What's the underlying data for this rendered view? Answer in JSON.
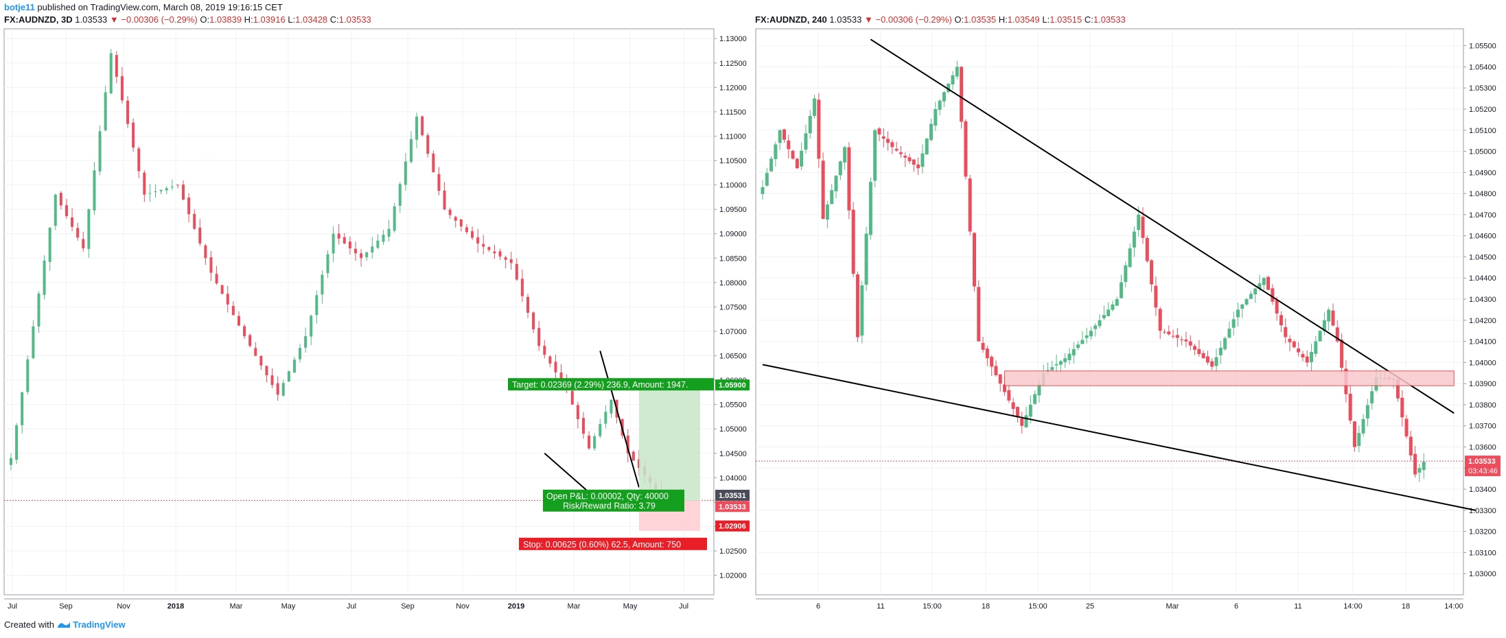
{
  "header": {
    "user": "botje11",
    "published_text": "published on TradingView.com, March 08, 2019 19:16:15 CET"
  },
  "footer": {
    "created_with": "Created with",
    "brand": "TradingView"
  },
  "colors": {
    "bull": "#53b987",
    "bear": "#eb4d5c",
    "grid": "#eef0f3",
    "axis": "#b2b5be",
    "text": "#131722",
    "target_zone": "#c8e6c9",
    "stop_zone": "#ffcdd2",
    "target_label": "#14a01e",
    "stop_label": "#e91e26",
    "zone_fill": "#f8c8cc",
    "zone_border": "#e53935"
  },
  "chart_data": [
    {
      "type": "candlestick",
      "symbol": "FX:AUDNZD",
      "interval": "3D",
      "title": {
        "symbol": "FX:AUDNZD, 3D",
        "last": "1.03533",
        "change": "▼ −0.00306 (−0.29%)",
        "o": "1.03839",
        "h": "1.03916",
        "l": "1.03428",
        "c": "1.03533"
      },
      "ylim": [
        1.016,
        1.132
      ],
      "y_ticks": [
        "1.13000",
        "1.12500",
        "1.12000",
        "1.11500",
        "1.11000",
        "1.10500",
        "1.10000",
        "1.09500",
        "1.09000",
        "1.08500",
        "1.08000",
        "1.07500",
        "1.07000",
        "1.06500",
        "1.06000",
        "1.05500",
        "1.05000",
        "1.04500",
        "1.04000",
        "1.03500",
        "1.03000",
        "1.02500",
        "1.02000"
      ],
      "x_ticks": [
        "Jul",
        "Sep",
        "Nov",
        "2018",
        "Mar",
        "May",
        "Jul",
        "Sep",
        "Nov",
        "2019",
        "Mar",
        "May",
        "Jul"
      ],
      "series": [
        {
          "anchor": 0,
          "v": 1.044
        },
        {
          "anchor": 8,
          "v": 1.098
        },
        {
          "anchor": 13,
          "v": 1.087
        },
        {
          "anchor": 18,
          "v": 1.127
        },
        {
          "anchor": 24,
          "v": 1.098
        },
        {
          "anchor": 30,
          "v": 1.1
        },
        {
          "anchor": 36,
          "v": 1.082
        },
        {
          "anchor": 42,
          "v": 1.069
        },
        {
          "anchor": 48,
          "v": 1.057
        },
        {
          "anchor": 53,
          "v": 1.069
        },
        {
          "anchor": 58,
          "v": 1.09
        },
        {
          "anchor": 63,
          "v": 1.085
        },
        {
          "anchor": 68,
          "v": 1.091
        },
        {
          "anchor": 73,
          "v": 1.114
        },
        {
          "anchor": 78,
          "v": 1.095
        },
        {
          "anchor": 84,
          "v": 1.088
        },
        {
          "anchor": 90,
          "v": 1.084
        },
        {
          "anchor": 95,
          "v": 1.067
        },
        {
          "anchor": 100,
          "v": 1.058
        },
        {
          "anchor": 104,
          "v": 1.046
        },
        {
          "anchor": 108,
          "v": 1.056
        },
        {
          "anchor": 111,
          "v": 1.045
        },
        {
          "anchor": 115,
          "v": 1.039
        },
        {
          "anchor": 118,
          "v": 1.0353
        }
      ],
      "current_price": "1.03533",
      "dotted_line_price": 1.03533,
      "price_labels": [
        {
          "text": "1.05900",
          "v": 1.059,
          "kind": "target"
        },
        {
          "text": "1.03531",
          "v": 1.0364,
          "kind": "dark"
        },
        {
          "text": "1.03533",
          "v": 1.0341,
          "kind": "current"
        },
        {
          "text": "1.02906",
          "v": 1.0301,
          "kind": "stop"
        }
      ],
      "position": {
        "entry": 1.0353,
        "target": 1.059,
        "stop": 1.0291,
        "target_text": "Target: 0.02369 (2.29%) 236.9, Amount: 1947.",
        "stop_text": "Stop: 0.00625 (0.60%) 62.5, Amount: 750",
        "pnl_text": "Open P&L: 0.00002, Qty: 40000",
        "rr_text": "Risk/Reward Ratio: 3.79"
      },
      "trendlines": [
        {
          "from": [
            96,
            1.045
          ],
          "to": [
            104,
            1.037
          ]
        },
        {
          "from": [
            106,
            1.066
          ],
          "to": [
            113,
            1.038
          ]
        }
      ]
    },
    {
      "type": "candlestick",
      "symbol": "FX:AUDNZD",
      "interval": "240",
      "title": {
        "symbol": "FX:AUDNZD, 240",
        "last": "1.03533",
        "change": "▼ −0.00306 (−0.29%)",
        "o": "1.03535",
        "h": "1.03549",
        "l": "1.03515",
        "c": "1.03533"
      },
      "ylim": [
        1.029,
        1.0558
      ],
      "y_ticks": [
        "1.05500",
        "1.05400",
        "1.05300",
        "1.05200",
        "1.05100",
        "1.05000",
        "1.04900",
        "1.04800",
        "1.04700",
        "1.04600",
        "1.04500",
        "1.04400",
        "1.04300",
        "1.04200",
        "1.04100",
        "1.04000",
        "1.03900",
        "1.03800",
        "1.03700",
        "1.03600",
        "1.03500",
        "1.03400",
        "1.03300",
        "1.03200",
        "1.03100",
        "1.03000"
      ],
      "x_ticks": [
        "6",
        "11",
        "15:00",
        "18",
        "15:00",
        "25",
        "Mar",
        "6",
        "11",
        "14:00",
        "18",
        "14:00"
      ],
      "series": [
        {
          "anchor": 0,
          "v": 1.0483
        },
        {
          "anchor": 4,
          "v": 1.051
        },
        {
          "anchor": 8,
          "v": 1.0492
        },
        {
          "anchor": 12,
          "v": 1.0525
        },
        {
          "anchor": 14,
          "v": 1.0468
        },
        {
          "anchor": 19,
          "v": 1.0502
        },
        {
          "anchor": 22,
          "v": 1.0412
        },
        {
          "anchor": 26,
          "v": 1.051
        },
        {
          "anchor": 30,
          "v": 1.0502
        },
        {
          "anchor": 36,
          "v": 1.0492
        },
        {
          "anchor": 40,
          "v": 1.052
        },
        {
          "anchor": 45,
          "v": 1.054
        },
        {
          "anchor": 50,
          "v": 1.041
        },
        {
          "anchor": 55,
          "v": 1.039
        },
        {
          "anchor": 60,
          "v": 1.037
        },
        {
          "anchor": 65,
          "v": 1.0395
        },
        {
          "anchor": 70,
          "v": 1.0402
        },
        {
          "anchor": 76,
          "v": 1.0415
        },
        {
          "anchor": 82,
          "v": 1.043
        },
        {
          "anchor": 87,
          "v": 1.047
        },
        {
          "anchor": 92,
          "v": 1.0415
        },
        {
          "anchor": 98,
          "v": 1.041
        },
        {
          "anchor": 104,
          "v": 1.0398
        },
        {
          "anchor": 110,
          "v": 1.0425
        },
        {
          "anchor": 116,
          "v": 1.044
        },
        {
          "anchor": 121,
          "v": 1.0412
        },
        {
          "anchor": 126,
          "v": 1.04
        },
        {
          "anchor": 131,
          "v": 1.0425
        },
        {
          "anchor": 133,
          "v": 1.041
        },
        {
          "anchor": 137,
          "v": 1.036
        },
        {
          "anchor": 142,
          "v": 1.0393
        },
        {
          "anchor": 146,
          "v": 1.0392
        },
        {
          "anchor": 149,
          "v": 1.0365
        },
        {
          "anchor": 151,
          "v": 1.0347
        },
        {
          "anchor": 153,
          "v": 1.0353
        }
      ],
      "current_price": "1.03533",
      "countdown": "03:43:46",
      "dotted_line_price": 1.03533,
      "resistance_zone": {
        "x0": 56,
        "x1": 160,
        "v_low": 1.0389,
        "v_high": 1.0396
      },
      "trendlines": [
        {
          "from": [
            25,
            1.0553
          ],
          "to": [
            160,
            1.0376
          ]
        },
        {
          "from": [
            0,
            1.0399
          ],
          "to": [
            165,
            1.033
          ]
        }
      ]
    }
  ]
}
